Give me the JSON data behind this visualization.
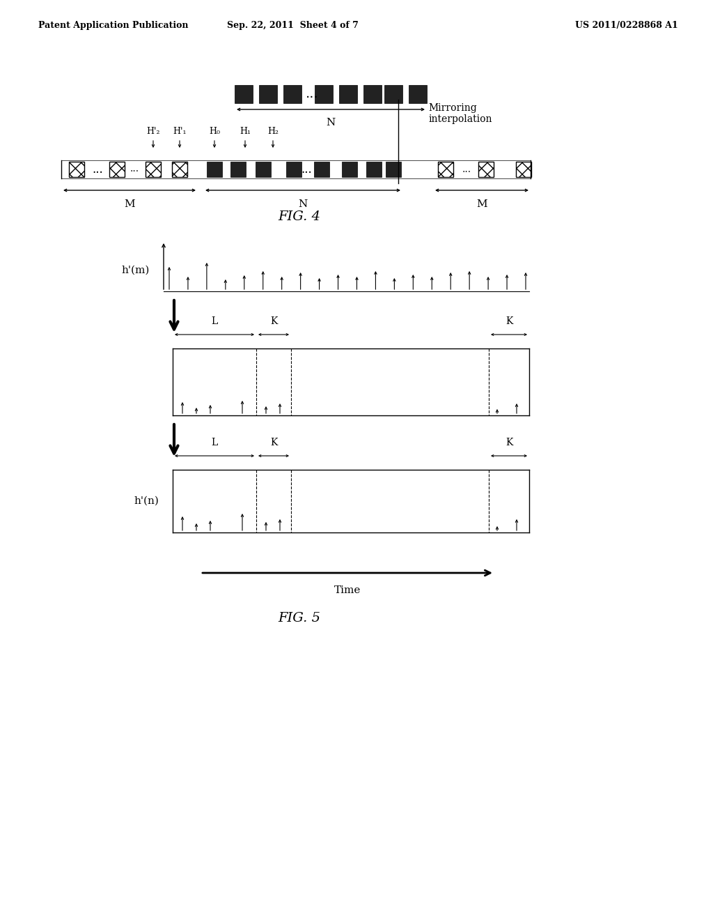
{
  "bg_color": "#ffffff",
  "header_left": "Patent Application Publication",
  "header_mid": "Sep. 22, 2011  Sheet 4 of 7",
  "header_right": "US 2011/0228868 A1",
  "fig4_label": "FIG. 4",
  "fig5_label": "FIG. 5",
  "time_label": "Time"
}
